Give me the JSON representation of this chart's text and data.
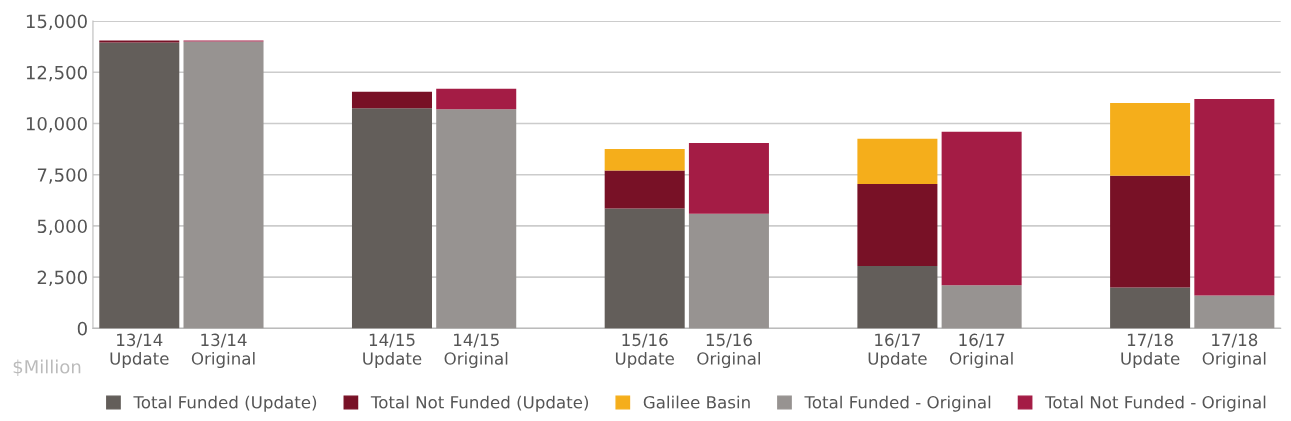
{
  "chart_data": {
    "type": "bar",
    "stacked": true,
    "ylabel": "$Million",
    "categories": [
      "13/14\nUpdate",
      "13/14\nOriginal",
      null,
      "14/15\nUpdate",
      "14/15\nOriginal",
      null,
      "15/16\nUpdate",
      "15/16\nOriginal",
      null,
      "16/17\nUpdate",
      "16/17\nOriginal",
      null,
      "17/18\nUpdate",
      "17/18\nOriginal"
    ],
    "series": [
      {
        "name": "Total Funded (Update)",
        "color": "#635e5a",
        "values": [
          13950,
          null,
          null,
          10750,
          null,
          null,
          5850,
          null,
          null,
          3050,
          null,
          null,
          2000,
          null
        ]
      },
      {
        "name": "Total Not Funded (Update)",
        "color": "#781126",
        "values": [
          100,
          null,
          null,
          800,
          null,
          null,
          1850,
          null,
          null,
          4000,
          null,
          null,
          5450,
          null
        ]
      },
      {
        "name": "Galilee Basin",
        "color": "#f5ae1b",
        "values": [
          null,
          null,
          null,
          null,
          null,
          null,
          1050,
          null,
          null,
          2200,
          null,
          null,
          3550,
          null
        ]
      },
      {
        "name": "Total Funded - Original",
        "color": "#979391",
        "values": [
          null,
          14000,
          null,
          null,
          10700,
          null,
          null,
          5600,
          null,
          null,
          2100,
          null,
          null,
          1600
        ]
      },
      {
        "name": "Total Not Funded - Original",
        "color": "#a41c45",
        "values": [
          null,
          50,
          null,
          null,
          1000,
          null,
          null,
          3450,
          null,
          null,
          7500,
          null,
          null,
          9600
        ]
      }
    ],
    "ylim": [
      0,
      15000
    ],
    "yticks": [
      {
        "value": 0,
        "label": "0"
      },
      {
        "value": 2500,
        "label": "2,500"
      },
      {
        "value": 5000,
        "label": "5,000"
      },
      {
        "value": 7500,
        "label": "7,500"
      },
      {
        "value": 10000,
        "label": "10,000"
      },
      {
        "value": 12500,
        "label": "12,500"
      },
      {
        "value": 15000,
        "label": "15,000"
      }
    ],
    "grid": "y",
    "legend": "bottom"
  }
}
